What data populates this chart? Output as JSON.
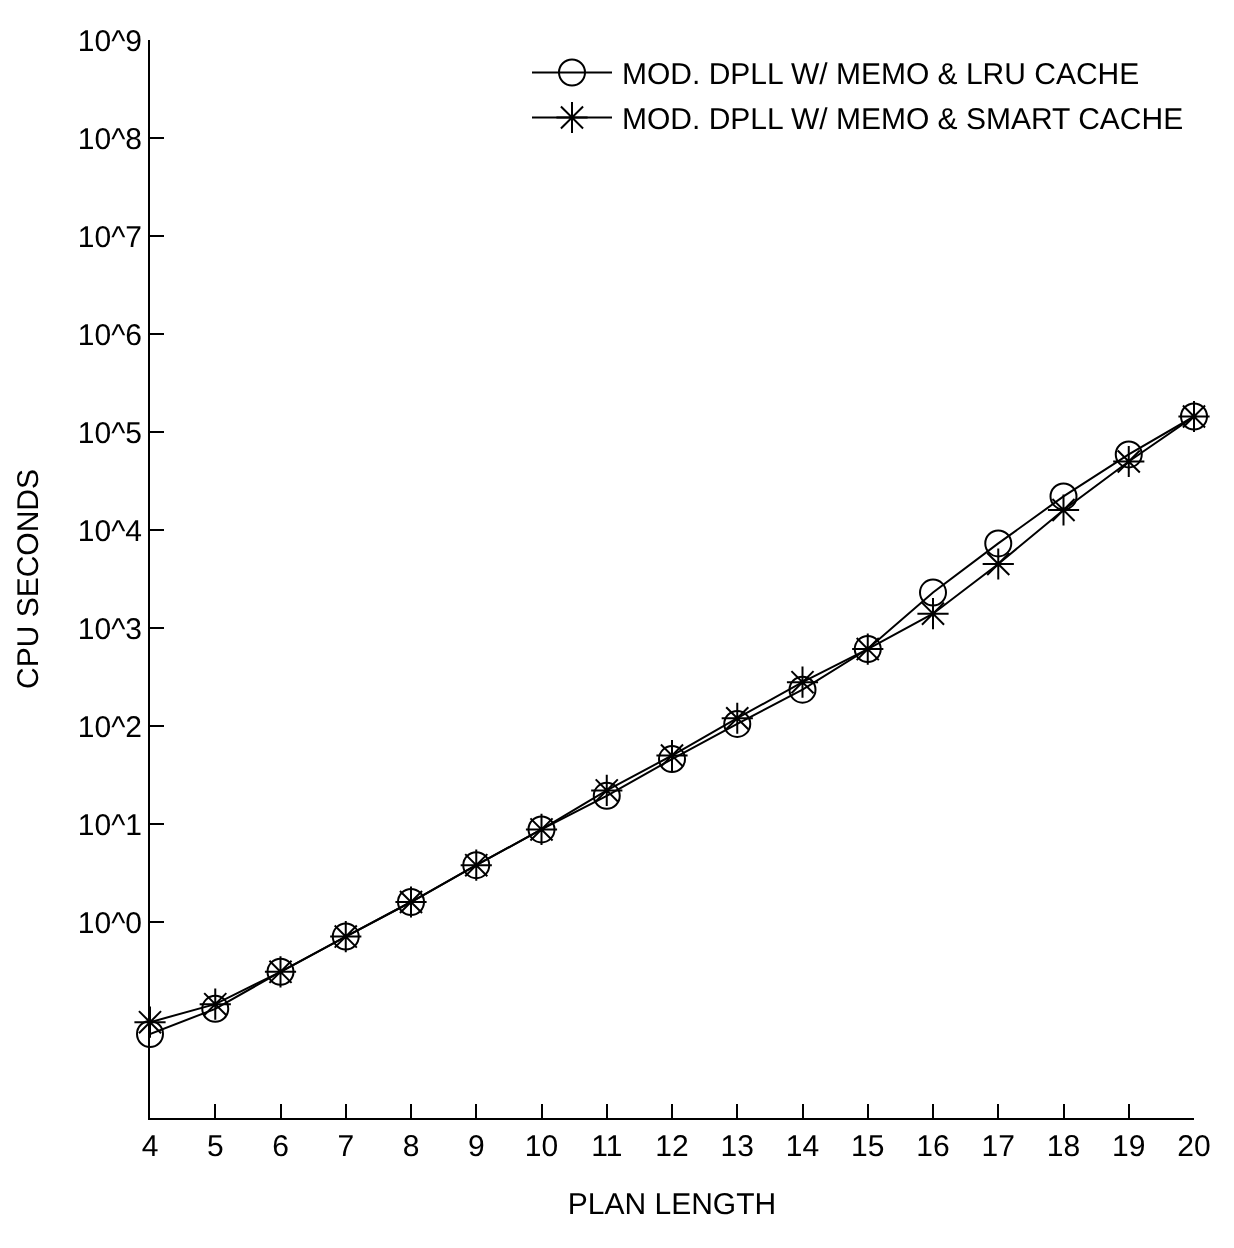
{
  "chart_data": {
    "type": "line",
    "xlabel": "PLAN LENGTH",
    "ylabel": "CPU SECONDS",
    "x": [
      4,
      5,
      6,
      7,
      8,
      9,
      10,
      11,
      12,
      13,
      14,
      15,
      16,
      17,
      18,
      19,
      20
    ],
    "series": [
      {
        "name": "MOD. DPLL W/ MEMO & LRU CACHE",
        "color": "#000000",
        "marker": "circle",
        "values": [
          0.072,
          0.13,
          0.31,
          0.71,
          1.6,
          3.8,
          8.8,
          19.4,
          46,
          105,
          235,
          610,
          2300,
          7300,
          22000,
          59000,
          144000
        ]
      },
      {
        "name": "MOD. DPLL W/ MEMO & SMART CACHE",
        "color": "#000000",
        "marker": "cross",
        "values": [
          0.095,
          0.145,
          0.31,
          0.71,
          1.6,
          3.8,
          8.8,
          22,
          50,
          120,
          280,
          610,
          1400,
          4500,
          16000,
          50000,
          144000
        ]
      }
    ],
    "log": "y",
    "xlim": [
      4,
      20
    ],
    "xticks": [
      4,
      5,
      6,
      7,
      8,
      9,
      10,
      11,
      12,
      13,
      14,
      15,
      16,
      17,
      18,
      19,
      20
    ],
    "ylim": [
      0.01,
      1000000000
    ],
    "yticks": [
      {
        "value": 1,
        "label": "10^0"
      },
      {
        "value": 10,
        "label": "10^1"
      },
      {
        "value": 100,
        "label": "10^2"
      },
      {
        "value": 1000,
        "label": "10^3"
      },
      {
        "value": 10000,
        "label": "10^4"
      },
      {
        "value": 100000,
        "label": "10^5"
      },
      {
        "value": 1000000,
        "label": "10^6"
      },
      {
        "value": 10000000,
        "label": "10^7"
      },
      {
        "value": 100000000,
        "label": "10^8"
      },
      {
        "value": 1000000000,
        "label": "10^9"
      }
    ],
    "legend": "top right",
    "line_style": "solid"
  }
}
